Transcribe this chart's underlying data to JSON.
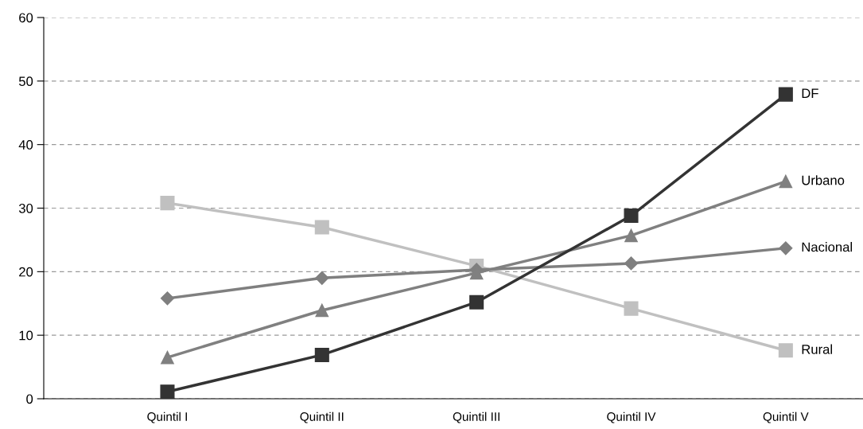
{
  "chart_data": {
    "type": "line",
    "categories": [
      "Quintil I",
      "Quintil II",
      "Quintil III",
      "Quintil IV",
      "Quintil V"
    ],
    "series": [
      {
        "name": "DF",
        "color": "#333333",
        "marker": "square",
        "values": [
          1.1,
          6.9,
          15.2,
          28.8,
          47.9
        ]
      },
      {
        "name": "Urbano",
        "color": "#808080",
        "marker": "triangle",
        "values": [
          6.5,
          13.9,
          19.8,
          25.7,
          34.2
        ]
      },
      {
        "name": "Nacional",
        "color": "#7f7f7f",
        "marker": "diamond",
        "values": [
          15.8,
          19.0,
          20.3,
          21.3,
          23.7
        ]
      },
      {
        "name": "Rural",
        "color": "#c0c0c0",
        "marker": "square",
        "values": [
          30.8,
          27.0,
          20.9,
          14.2,
          7.6
        ]
      }
    ],
    "ylim": [
      0,
      60
    ],
    "yticks": [
      0,
      10,
      20,
      30,
      40,
      50,
      60
    ],
    "grid": "y",
    "legend": false,
    "line_style": "solid"
  }
}
